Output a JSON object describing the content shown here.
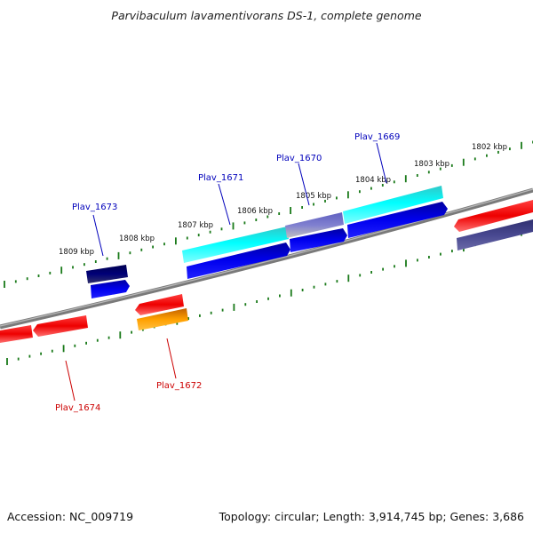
{
  "title": "Parvibaculum lavamentivorans DS-1, complete genome",
  "accession": "Accession: NC_009719",
  "topology": "Topology: circular; Length: 3,914,745 bp; Genes: 3,686",
  "colors": {
    "backbone": "#808080",
    "ticks": "#1a7a1a",
    "forward_label": "#0000bb",
    "reverse_label": "#cc0000"
  },
  "kbp_labels": [
    {
      "id": "kbp-1809",
      "text": "1809 kbp"
    },
    {
      "id": "kbp-1808",
      "text": "1808 kbp"
    },
    {
      "id": "kbp-1807",
      "text": "1807 kbp"
    },
    {
      "id": "kbp-1806",
      "text": "1806 kbp"
    },
    {
      "id": "kbp-1805",
      "text": "1805 kbp"
    },
    {
      "id": "kbp-1804",
      "text": "1804 kbp"
    },
    {
      "id": "kbp-1803",
      "text": "1803 kbp"
    },
    {
      "id": "kbp-1802",
      "text": "1802 kbp"
    }
  ],
  "gene_labels": [
    {
      "id": "plav-1673",
      "text": "Plav_1673",
      "strand": "forward"
    },
    {
      "id": "plav-1671",
      "text": "Plav_1671",
      "strand": "forward"
    },
    {
      "id": "plav-1670",
      "text": "Plav_1670",
      "strand": "forward"
    },
    {
      "id": "plav-1669",
      "text": "Plav_1669",
      "strand": "forward"
    },
    {
      "id": "plav-1672",
      "text": "Plav_1672",
      "strand": "reverse"
    },
    {
      "id": "plav-1674",
      "text": "Plav_1674",
      "strand": "reverse"
    }
  ]
}
